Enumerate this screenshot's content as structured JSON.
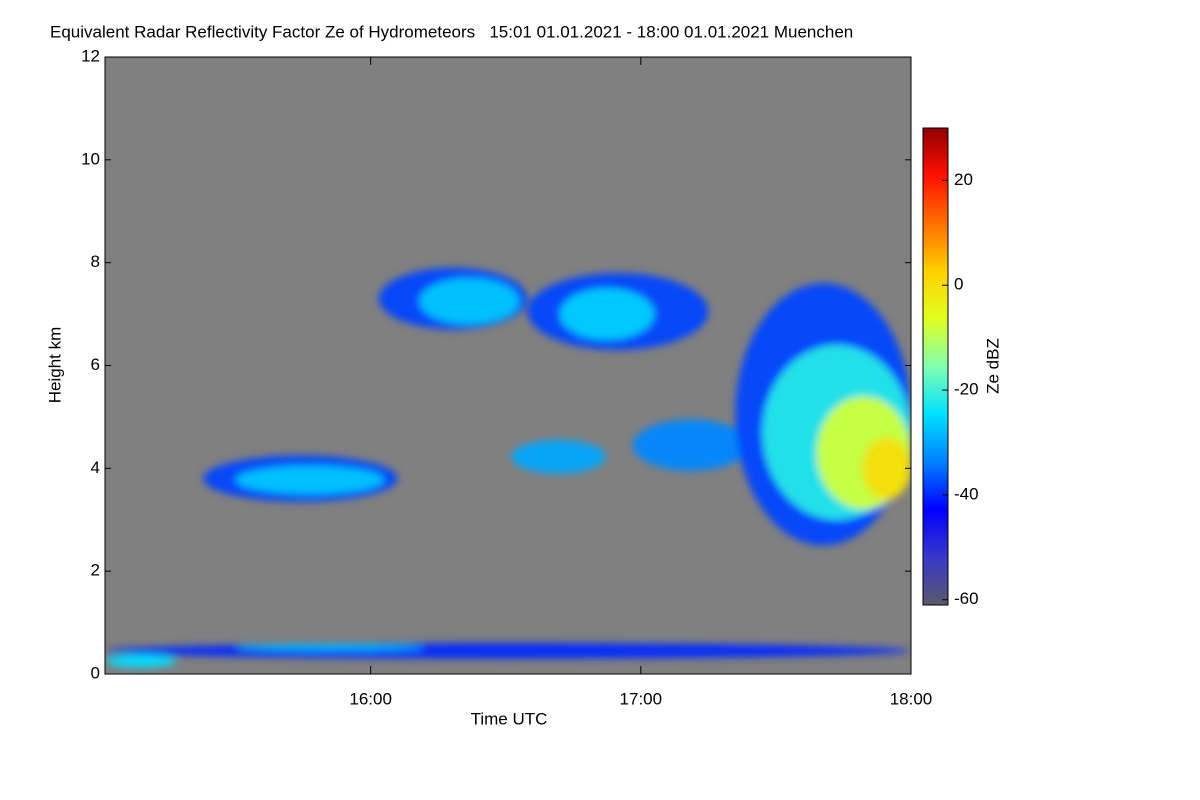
{
  "chart_data": {
    "type": "heatmap",
    "title": "Equivalent Radar Reflectivity Factor Ze of Hydrometeors   15:01 01.01.2021 - 18:00 01.01.2021 Muenchen",
    "x_label": "Time UTC",
    "y_label": "Height km",
    "colorbar_label": "Ze dBZ",
    "xlim": [
      15.0167,
      18.0
    ],
    "xticks": [
      {
        "value": 16,
        "label": "16:00"
      },
      {
        "value": 17,
        "label": "17:00"
      },
      {
        "value": 18,
        "label": "18:00"
      }
    ],
    "ylim": [
      0,
      12
    ],
    "yticks": [
      0,
      2,
      4,
      6,
      8,
      10,
      12
    ],
    "clim": [
      -61,
      30
    ],
    "cticks": [
      -60,
      -40,
      -20,
      0,
      20
    ],
    "background": "#808080",
    "colormap": [
      "#5a5a6e",
      "#3838c8",
      "#0000ff",
      "#0080ff",
      "#00e0ff",
      "#80ffb0",
      "#e0ff20",
      "#ffd000",
      "#ff7000",
      "#ff1000",
      "#900000"
    ],
    "cells": [
      {
        "t0": 15.38,
        "t1": 16.1,
        "h0": 3.35,
        "h1": 4.25,
        "value": -38
      },
      {
        "t0": 15.5,
        "t1": 16.05,
        "h0": 3.5,
        "h1": 4.05,
        "value": -27
      },
      {
        "t0": 16.03,
        "t1": 16.58,
        "h0": 6.7,
        "h1": 7.9,
        "value": -38
      },
      {
        "t0": 16.18,
        "t1": 16.55,
        "h0": 6.8,
        "h1": 7.7,
        "value": -27
      },
      {
        "t0": 16.58,
        "t1": 17.25,
        "h0": 6.3,
        "h1": 7.8,
        "value": -38
      },
      {
        "t0": 16.7,
        "t1": 17.05,
        "h0": 6.5,
        "h1": 7.5,
        "value": -26
      },
      {
        "t0": 16.52,
        "t1": 16.87,
        "h0": 3.9,
        "h1": 4.55,
        "value": -30
      },
      {
        "t0": 16.97,
        "t1": 17.4,
        "h0": 3.95,
        "h1": 4.95,
        "value": -33
      },
      {
        "t0": 17.35,
        "t1": 18.0,
        "h0": 2.5,
        "h1": 7.6,
        "value": -38
      },
      {
        "t0": 17.45,
        "t1": 18.0,
        "h0": 3.0,
        "h1": 6.4,
        "value": -22
      },
      {
        "t0": 17.65,
        "t1": 18.0,
        "h0": 3.2,
        "h1": 5.4,
        "value": -8
      },
      {
        "t0": 17.82,
        "t1": 18.0,
        "h0": 3.4,
        "h1": 4.6,
        "value": 0
      },
      {
        "t0": 15.02,
        "t1": 18.0,
        "h0": 0.3,
        "h1": 0.6,
        "value": -40
      },
      {
        "t0": 15.5,
        "t1": 16.2,
        "h0": 0.45,
        "h1": 0.58,
        "value": -28
      },
      {
        "t0": 15.02,
        "t1": 15.28,
        "h0": 0.12,
        "h1": 0.38,
        "value": -25
      }
    ]
  }
}
